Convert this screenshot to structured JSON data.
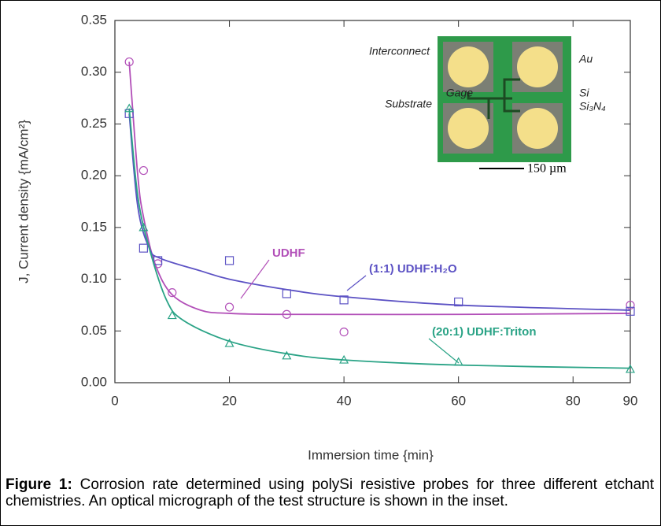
{
  "chart_data": {
    "type": "scatter",
    "xlabel": "Immersion time {min}",
    "ylabel": "J, Current density {mA/cm²}",
    "xlim": [
      0,
      90
    ],
    "ylim": [
      0,
      0.35
    ],
    "xticks": [
      0,
      20,
      40,
      60,
      80,
      90
    ],
    "yticks": [
      {
        "value": 0,
        "label": "0.00"
      },
      0.05,
      {
        "value": 0.1,
        "label": "0.10"
      },
      0.15,
      {
        "value": 0.2,
        "label": "0.20"
      },
      0.25,
      {
        "value": 0.3,
        "label": "0.30"
      },
      0.35
    ],
    "grid": false,
    "series": [
      {
        "name": "UDHF",
        "color": "#b24fb8",
        "marker": "circle",
        "x": [
          2.5,
          5,
          7.5,
          10,
          20,
          30,
          40,
          90
        ],
        "values": [
          0.31,
          0.205,
          0.115,
          0.087,
          0.073,
          0.066,
          0.049,
          0.075
        ],
        "fit": {
          "x": [
            2.5,
            4,
            5,
            7,
            10,
            15,
            20,
            30,
            60,
            90
          ],
          "values": [
            0.31,
            0.2,
            0.16,
            0.115,
            0.085,
            0.07,
            0.067,
            0.066,
            0.066,
            0.067
          ]
        }
      },
      {
        "name": "(1:1) UDHF:H₂O",
        "color": "#5c52c4",
        "marker": "square",
        "x": [
          2.5,
          5,
          7.5,
          20,
          30,
          40,
          60,
          90
        ],
        "values": [
          0.26,
          0.13,
          0.118,
          0.118,
          0.086,
          0.08,
          0.078,
          0.069
        ],
        "fit": {
          "x": [
            2.5,
            4,
            6,
            8,
            15,
            20,
            30,
            40,
            60,
            90
          ],
          "values": [
            0.26,
            0.17,
            0.13,
            0.12,
            0.108,
            0.1,
            0.09,
            0.083,
            0.075,
            0.07
          ]
        }
      },
      {
        "name": "(20:1) UDHF:Triton",
        "color": "#2aa386",
        "marker": "triangle",
        "x": [
          2.5,
          5,
          10,
          20,
          30,
          40,
          60,
          90
        ],
        "values": [
          0.265,
          0.15,
          0.065,
          0.038,
          0.026,
          0.022,
          0.02,
          0.013
        ],
        "fit": {
          "x": [
            2.5,
            4,
            6,
            9,
            12,
            20,
            30,
            40,
            60,
            90
          ],
          "values": [
            0.265,
            0.18,
            0.13,
            0.08,
            0.06,
            0.04,
            0.028,
            0.022,
            0.017,
            0.014
          ]
        }
      }
    ],
    "inset": {
      "labels": [
        "Interconnect",
        "Au",
        "Gage",
        "Si",
        "Substrate",
        "Si₃N₄"
      ],
      "scale": "150 µm"
    }
  },
  "caption": {
    "label": "Figure 1:",
    "text": " Corrosion rate determined using polySi resistive probes for three different etchant chemistries. An optical micrograph of the test structure is shown in the inset."
  }
}
